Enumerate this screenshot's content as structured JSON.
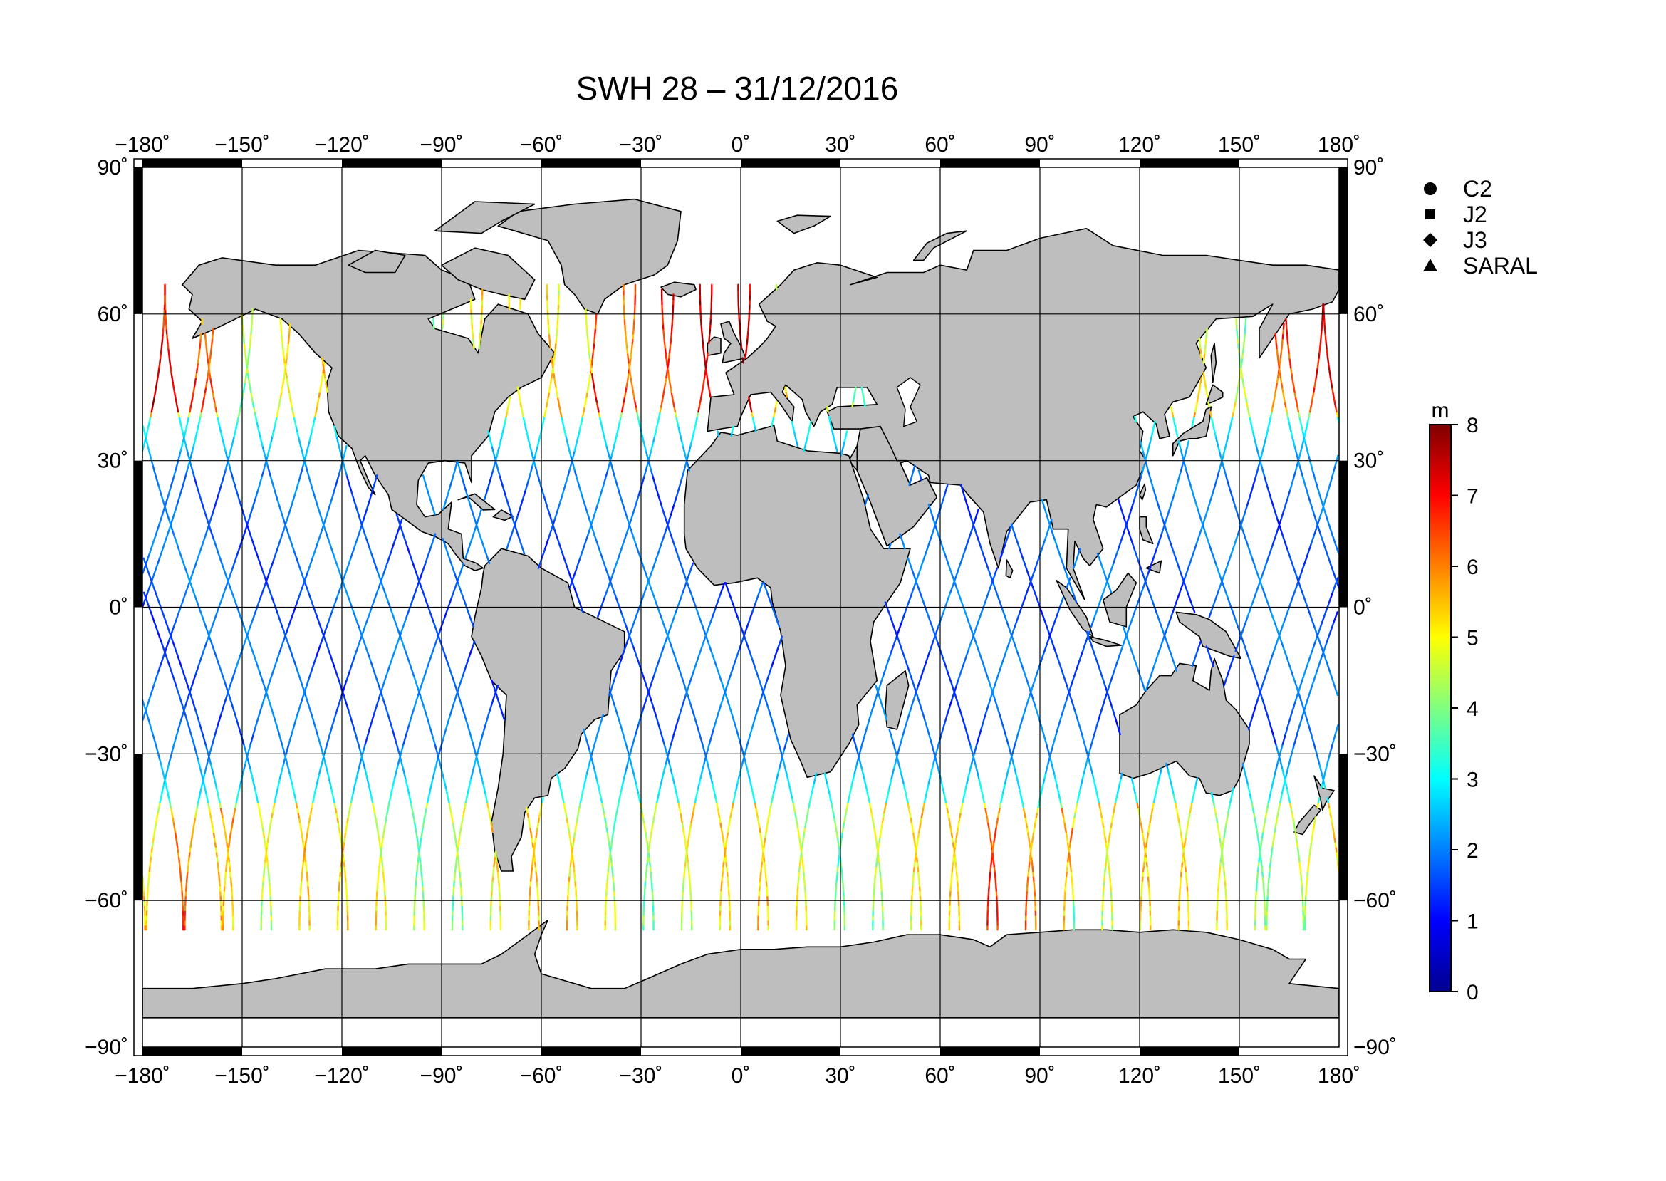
{
  "title": "SWH 28 – 31/12/2016",
  "map": {
    "projection": "equirectangular",
    "lon_range": [
      -180,
      180
    ],
    "lat_range": [
      -90,
      90
    ],
    "lon_ticks": [
      {
        "value": -180,
        "label": "−180˚"
      },
      {
        "value": -150,
        "label": "−150˚"
      },
      {
        "value": -120,
        "label": "−120˚"
      },
      {
        "value": -90,
        "label": "−90˚"
      },
      {
        "value": -60,
        "label": "−60˚"
      },
      {
        "value": -30,
        "label": "−30˚"
      },
      {
        "value": 0,
        "label": "0˚"
      },
      {
        "value": 30,
        "label": "30˚"
      },
      {
        "value": 60,
        "label": "60˚"
      },
      {
        "value": 90,
        "label": "90˚"
      },
      {
        "value": 120,
        "label": "120˚"
      },
      {
        "value": 150,
        "label": "150˚"
      },
      {
        "value": 180,
        "label": "180˚"
      }
    ],
    "lat_ticks": [
      {
        "value": 90,
        "label": "90˚"
      },
      {
        "value": 60,
        "label": "60˚"
      },
      {
        "value": 30,
        "label": "30˚"
      },
      {
        "value": 0,
        "label": "0˚"
      },
      {
        "value": -30,
        "label": "−30˚"
      },
      {
        "value": -60,
        "label": "−60˚"
      },
      {
        "value": -90,
        "label": "−90˚"
      }
    ],
    "gridlines": true,
    "land_color": "#bebebe",
    "ocean_color": "#ffffff"
  },
  "legend": {
    "placement": "top-right",
    "items": [
      {
        "marker": "circle",
        "label": "C2"
      },
      {
        "marker": "square",
        "label": "J2"
      },
      {
        "marker": "diamond",
        "label": "J3"
      },
      {
        "marker": "triangle",
        "label": "SARAL"
      }
    ]
  },
  "colorbar": {
    "unit": "m",
    "range": [
      0,
      8
    ],
    "ticks": [
      "0",
      "1",
      "2",
      "3",
      "4",
      "5",
      "6",
      "7",
      "8"
    ],
    "colors": [
      "#00008f",
      "#0000ff",
      "#0080ff",
      "#00ffff",
      "#80ff80",
      "#ffff00",
      "#ff8000",
      "#ff0000",
      "#800000"
    ]
  },
  "chart_data": {
    "type": "scatter",
    "variable": "SWH",
    "unit": "m",
    "x": "longitude",
    "y": "latitude",
    "track_lat_range": [
      -66,
      66
    ],
    "regional_swh_m": [
      {
        "region": "equatorial",
        "lat_range": [
          -30,
          30
        ],
        "swh_m": [
          0.5,
          2.5
        ]
      },
      {
        "region": "northern_mid_latitudes",
        "lat_range": [
          30,
          66
        ],
        "swh_m": [
          2,
          8
        ]
      },
      {
        "region": "southern_ocean",
        "lat_range": [
          -66,
          -30
        ],
        "swh_m": [
          2,
          7
        ]
      }
    ]
  }
}
